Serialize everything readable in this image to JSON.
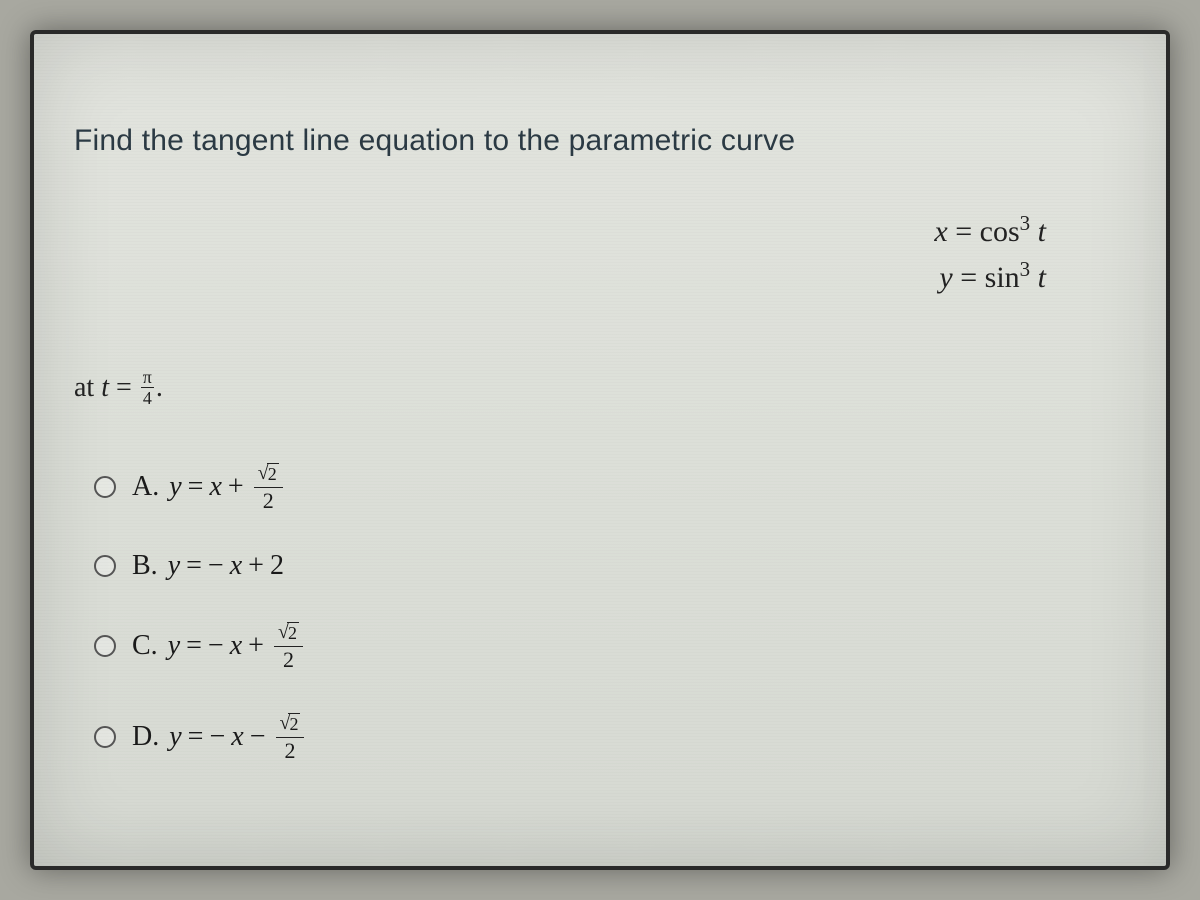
{
  "colors": {
    "page_background": "#a8a8a0",
    "panel_gradient_top": "#e2e4de",
    "panel_gradient_bottom": "#d6d9d2",
    "frame_border": "#2a2a2a",
    "prompt_text": "#2b3a44",
    "math_text": "#222222",
    "radio_border": "#555555"
  },
  "typography": {
    "prompt_fontsize": 30,
    "math_fontsize": 28,
    "option_fontsize": 28,
    "prompt_family": "Arial",
    "math_family": "Times New Roman"
  },
  "question": {
    "prompt": "Find the tangent line equation to the parametric curve",
    "equations": {
      "x": "x = cos³ t",
      "x_lhs": "x",
      "x_eq": " = ",
      "x_func": "cos",
      "x_exp": "3",
      "x_var": " t",
      "y": "y = sin³ t",
      "y_lhs": "y",
      "y_eq": " = ",
      "y_func": "sin",
      "y_exp": "3",
      "y_var": " t"
    },
    "at": {
      "prefix": "at ",
      "var": "t",
      "eq": " = ",
      "frac_num": "π",
      "frac_den": "4",
      "suffix": "."
    }
  },
  "options": [
    {
      "letter": "A.",
      "lhs": "y",
      "eq": " = ",
      "rhs_x_sign": "",
      "rhs_x": "x",
      "op": " + ",
      "frac_num_sqrt_arg": "2",
      "frac_den": "2",
      "has_frac": true,
      "const_plain": ""
    },
    {
      "letter": "B.",
      "lhs": "y",
      "eq": " = ",
      "rhs_x_sign": "−",
      "rhs_x": "x",
      "op": " + ",
      "frac_num_sqrt_arg": "",
      "frac_den": "",
      "has_frac": false,
      "const_plain": "2"
    },
    {
      "letter": "C.",
      "lhs": "y",
      "eq": " = ",
      "rhs_x_sign": "−",
      "rhs_x": "x",
      "op": " + ",
      "frac_num_sqrt_arg": "2",
      "frac_den": "2",
      "has_frac": true,
      "const_plain": ""
    },
    {
      "letter": "D.",
      "lhs": "y",
      "eq": " = ",
      "rhs_x_sign": "−",
      "rhs_x": "x",
      "op": " − ",
      "frac_num_sqrt_arg": "2",
      "frac_den": "2",
      "has_frac": true,
      "const_plain": ""
    }
  ]
}
